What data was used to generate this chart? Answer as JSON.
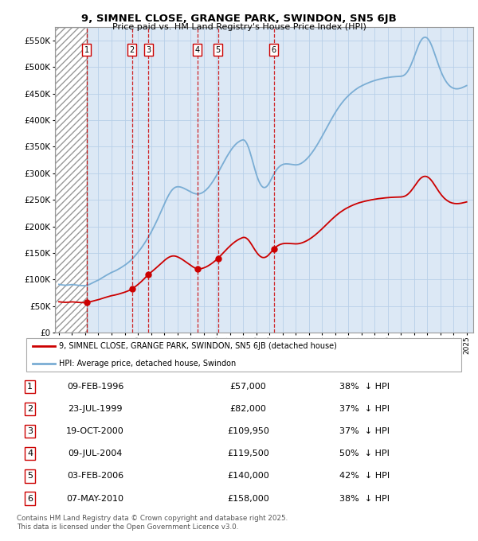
{
  "title": "9, SIMNEL CLOSE, GRANGE PARK, SWINDON, SN5 6JB",
  "subtitle": "Price paid vs. HM Land Registry's House Price Index (HPI)",
  "ylim": [
    0,
    575000
  ],
  "yticks": [
    0,
    50000,
    100000,
    150000,
    200000,
    250000,
    300000,
    350000,
    400000,
    450000,
    500000,
    550000
  ],
  "ytick_labels": [
    "£0",
    "£50K",
    "£100K",
    "£150K",
    "£200K",
    "£250K",
    "£300K",
    "£350K",
    "£400K",
    "£450K",
    "£500K",
    "£550K"
  ],
  "xlim_start": 1993.7,
  "xlim_end": 2025.5,
  "transactions": [
    {
      "num": 1,
      "date": "09-FEB-1996",
      "year": 1996.1,
      "price": 57000,
      "pct": "38%",
      "dir": "↓"
    },
    {
      "num": 2,
      "date": "23-JUL-1999",
      "year": 1999.55,
      "price": 82000,
      "pct": "37%",
      "dir": "↓"
    },
    {
      "num": 3,
      "date": "19-OCT-2000",
      "year": 2000.8,
      "price": 109950,
      "pct": "37%",
      "dir": "↓"
    },
    {
      "num": 4,
      "date": "09-JUL-2004",
      "year": 2004.52,
      "price": 119500,
      "pct": "50%",
      "dir": "↓"
    },
    {
      "num": 5,
      "date": "03-FEB-2006",
      "year": 2006.1,
      "price": 140000,
      "pct": "42%",
      "dir": "↓"
    },
    {
      "num": 6,
      "date": "07-MAY-2010",
      "year": 2010.35,
      "price": 158000,
      "pct": "38%",
      "dir": "↓"
    }
  ],
  "legend_line1": "9, SIMNEL CLOSE, GRANGE PARK, SWINDON, SN5 6JB (detached house)",
  "legend_line2": "HPI: Average price, detached house, Swindon",
  "footnote": "Contains HM Land Registry data © Crown copyright and database right 2025.\nThis data is licensed under the Open Government Licence v3.0.",
  "red_line_color": "#cc0000",
  "blue_line_color": "#7aadd4",
  "background_color": "#dce8f5",
  "hatch_color": "#aaaaaa",
  "grid_color": "#b8cfe8",
  "xstart_hatch": 1993.7,
  "xend_hatch": 1996.1,
  "hpi_years": [
    1994,
    1994.083,
    1994.167,
    1994.25,
    1994.333,
    1994.417,
    1994.5,
    1994.583,
    1994.667,
    1994.75,
    1994.833,
    1994.917,
    1995,
    1995.083,
    1995.167,
    1995.25,
    1995.333,
    1995.417,
    1995.5,
    1995.583,
    1995.667,
    1995.75,
    1995.833,
    1995.917,
    1996,
    1996.083,
    1996.167,
    1996.25,
    1996.333,
    1996.417,
    1996.5,
    1996.583,
    1996.667,
    1996.75,
    1996.833,
    1996.917,
    1997,
    1997.083,
    1997.167,
    1997.25,
    1997.333,
    1997.417,
    1997.5,
    1997.583,
    1997.667,
    1997.75,
    1997.833,
    1997.917,
    1998,
    1998.083,
    1998.167,
    1998.25,
    1998.333,
    1998.417,
    1998.5,
    1998.583,
    1998.667,
    1998.75,
    1998.833,
    1998.917,
    1999,
    1999.083,
    1999.167,
    1999.25,
    1999.333,
    1999.417,
    1999.5,
    1999.583,
    1999.667,
    1999.75,
    1999.833,
    1999.917,
    2000,
    2000.083,
    2000.167,
    2000.25,
    2000.333,
    2000.417,
    2000.5,
    2000.583,
    2000.667,
    2000.75,
    2000.833,
    2000.917,
    2001,
    2001.083,
    2001.167,
    2001.25,
    2001.333,
    2001.417,
    2001.5,
    2001.583,
    2001.667,
    2001.75,
    2001.833,
    2001.917,
    2002,
    2002.083,
    2002.167,
    2002.25,
    2002.333,
    2002.417,
    2002.5,
    2002.583,
    2002.667,
    2002.75,
    2002.833,
    2002.917,
    2003,
    2003.083,
    2003.167,
    2003.25,
    2003.333,
    2003.417,
    2003.5,
    2003.583,
    2003.667,
    2003.75,
    2003.833,
    2003.917,
    2004,
    2004.083,
    2004.167,
    2004.25,
    2004.333,
    2004.417,
    2004.5,
    2004.583,
    2004.667,
    2004.75,
    2004.833,
    2004.917,
    2005,
    2005.083,
    2005.167,
    2005.25,
    2005.333,
    2005.417,
    2005.5,
    2005.583,
    2005.667,
    2005.75,
    2005.833,
    2005.917,
    2006,
    2006.083,
    2006.167,
    2006.25,
    2006.333,
    2006.417,
    2006.5,
    2006.583,
    2006.667,
    2006.75,
    2006.833,
    2006.917,
    2007,
    2007.083,
    2007.167,
    2007.25,
    2007.333,
    2007.417,
    2007.5,
    2007.583,
    2007.667,
    2007.75,
    2007.833,
    2007.917,
    2008,
    2008.083,
    2008.167,
    2008.25,
    2008.333,
    2008.417,
    2008.5,
    2008.583,
    2008.667,
    2008.75,
    2008.833,
    2008.917,
    2009,
    2009.083,
    2009.167,
    2009.25,
    2009.333,
    2009.417,
    2009.5,
    2009.583,
    2009.667,
    2009.75,
    2009.833,
    2009.917,
    2010,
    2010.083,
    2010.167,
    2010.25,
    2010.333,
    2010.417,
    2010.5,
    2010.583,
    2010.667,
    2010.75,
    2010.833,
    2010.917,
    2011,
    2011.083,
    2011.167,
    2011.25,
    2011.333,
    2011.417,
    2011.5,
    2011.583,
    2011.667,
    2011.75,
    2011.833,
    2011.917,
    2012,
    2012.083,
    2012.167,
    2012.25,
    2012.333,
    2012.417,
    2012.5,
    2012.583,
    2012.667,
    2012.75,
    2012.833,
    2012.917,
    2013,
    2013.083,
    2013.167,
    2013.25,
    2013.333,
    2013.417,
    2013.5,
    2013.583,
    2013.667,
    2013.75,
    2013.833,
    2013.917,
    2014,
    2014.083,
    2014.167,
    2014.25,
    2014.333,
    2014.417,
    2014.5,
    2014.583,
    2014.667,
    2014.75,
    2014.833,
    2014.917,
    2015,
    2015.083,
    2015.167,
    2015.25,
    2015.333,
    2015.417,
    2015.5,
    2015.583,
    2015.667,
    2015.75,
    2015.833,
    2015.917,
    2016,
    2016.083,
    2016.167,
    2016.25,
    2016.333,
    2016.417,
    2016.5,
    2016.583,
    2016.667,
    2016.75,
    2016.833,
    2016.917,
    2017,
    2017.083,
    2017.167,
    2017.25,
    2017.333,
    2017.417,
    2017.5,
    2017.583,
    2017.667,
    2017.75,
    2017.833,
    2017.917,
    2018,
    2018.083,
    2018.167,
    2018.25,
    2018.333,
    2018.417,
    2018.5,
    2018.583,
    2018.667,
    2018.75,
    2018.833,
    2018.917,
    2019,
    2019.083,
    2019.167,
    2019.25,
    2019.333,
    2019.417,
    2019.5,
    2019.583,
    2019.667,
    2019.75,
    2019.833,
    2019.917,
    2020,
    2020.083,
    2020.167,
    2020.25,
    2020.333,
    2020.417,
    2020.5,
    2020.583,
    2020.667,
    2020.75,
    2020.833,
    2020.917,
    2021,
    2021.083,
    2021.167,
    2021.25,
    2021.333,
    2021.417,
    2021.5,
    2021.583,
    2021.667,
    2021.75,
    2021.833,
    2021.917,
    2022,
    2022.083,
    2022.167,
    2022.25,
    2022.333,
    2022.417,
    2022.5,
    2022.583,
    2022.667,
    2022.75,
    2022.833,
    2022.917,
    2023,
    2023.083,
    2023.167,
    2023.25,
    2023.333,
    2023.417,
    2023.5,
    2023.583,
    2023.667,
    2023.75,
    2023.833,
    2023.917,
    2024,
    2024.083,
    2024.167,
    2024.25,
    2024.333,
    2024.417,
    2024.5,
    2024.583,
    2024.667,
    2024.75,
    2024.833,
    2024.917,
    2025
  ],
  "hpi_values": [
    91000,
    90500,
    90200,
    89900,
    89700,
    89500,
    89300,
    89400,
    89600,
    89800,
    90100,
    90400,
    90700,
    90500,
    90200,
    89900,
    89600,
    89400,
    89100,
    88900,
    88700,
    88600,
    88500,
    88500,
    88600,
    89000,
    89500,
    90200,
    91000,
    92000,
    93000,
    94100,
    95200,
    96200,
    97200,
    98100,
    99000,
    100200,
    101500,
    102800,
    104000,
    105200,
    106500,
    107700,
    108900,
    110100,
    111200,
    112300,
    113400,
    114200,
    115100,
    116000,
    117000,
    118100,
    119200,
    120400,
    121600,
    122900,
    124200,
    125500,
    126800,
    128300,
    129900,
    131500,
    133200,
    135000,
    136900,
    139000,
    141200,
    143500,
    145900,
    148300,
    150800,
    153400,
    156100,
    158900,
    161800,
    164800,
    167900,
    171100,
    174400,
    177800,
    181300,
    184900,
    188500,
    192400,
    196400,
    200500,
    204700,
    209000,
    213400,
    217900,
    222500,
    227100,
    231800,
    236500,
    241200,
    245800,
    250200,
    254400,
    258300,
    261900,
    265100,
    267900,
    270200,
    272000,
    273300,
    274100,
    274500,
    274600,
    274400,
    274000,
    273400,
    272600,
    271700,
    270700,
    269600,
    268500,
    267300,
    266200,
    265000,
    264000,
    263100,
    262300,
    261700,
    261200,
    261000,
    261000,
    261300,
    261800,
    262600,
    263600,
    264900,
    266400,
    268100,
    270100,
    272300,
    274700,
    277400,
    280200,
    283200,
    286400,
    289700,
    293100,
    296700,
    300400,
    304100,
    307900,
    311700,
    315500,
    319300,
    323100,
    326800,
    330400,
    333900,
    337300,
    340500,
    343600,
    346500,
    349200,
    351700,
    353900,
    355900,
    357600,
    359100,
    360400,
    361500,
    362300,
    362900,
    362300,
    360500,
    357500,
    353400,
    348200,
    342100,
    335300,
    328000,
    320500,
    313000,
    305800,
    299000,
    292800,
    287300,
    282600,
    278800,
    275900,
    274000,
    273100,
    273200,
    274200,
    276000,
    278700,
    282100,
    285900,
    289900,
    293900,
    297800,
    301400,
    304700,
    307600,
    310100,
    312200,
    313900,
    315200,
    316200,
    316900,
    317400,
    317600,
    317600,
    317500,
    317300,
    317000,
    316700,
    316400,
    316100,
    315900,
    315800,
    315900,
    316200,
    316700,
    317500,
    318500,
    319800,
    321200,
    322900,
    324700,
    326700,
    328800,
    331100,
    333600,
    336200,
    339000,
    341900,
    344900,
    348100,
    351300,
    354700,
    358200,
    361700,
    365300,
    369000,
    372700,
    376500,
    380300,
    384100,
    388000,
    391800,
    395600,
    399300,
    403000,
    406600,
    410200,
    413600,
    416900,
    420100,
    423200,
    426200,
    429100,
    431800,
    434400,
    436900,
    439300,
    441600,
    443700,
    445700,
    447700,
    449600,
    451400,
    453100,
    454800,
    456400,
    457900,
    459300,
    460700,
    462000,
    463100,
    464200,
    465200,
    466200,
    467200,
    468100,
    469000,
    469900,
    470700,
    471500,
    472300,
    473000,
    473700,
    474400,
    475000,
    475600,
    476200,
    476700,
    477200,
    477700,
    478200,
    478600,
    479000,
    479400,
    479800,
    480100,
    480400,
    480700,
    481000,
    481200,
    481400,
    481600,
    481700,
    481900,
    482000,
    482100,
    482200,
    482400,
    482800,
    483500,
    484600,
    486200,
    488400,
    491100,
    494500,
    498400,
    502800,
    507700,
    512900,
    518400,
    524000,
    529600,
    535000,
    540100,
    544700,
    548600,
    551700,
    554000,
    555400,
    555900,
    555500,
    554200,
    552000,
    548900,
    545100,
    540500,
    535300,
    529600,
    523600,
    517500,
    511400,
    505500,
    499800,
    494400,
    489400,
    484700,
    480500,
    476700,
    473300,
    470300,
    467700,
    465400,
    463500,
    462000,
    460800,
    459900,
    459300,
    458900,
    458800,
    458900,
    459200,
    459700,
    460300,
    461100,
    462000,
    462900,
    463900,
    464900
  ]
}
